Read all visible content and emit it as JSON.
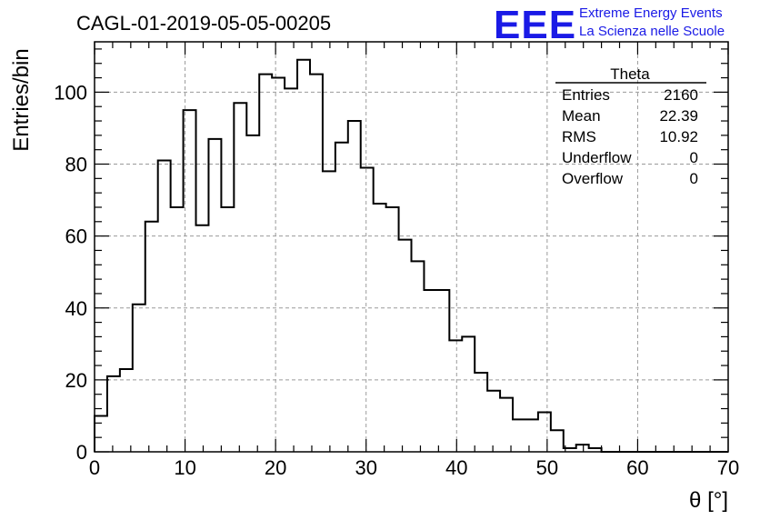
{
  "chart_data": {
    "type": "bar",
    "style": "histogram-step",
    "title": "CAGL-01-2019-05-05-00205",
    "xlabel": "θ [°]",
    "ylabel": "Entries/bin",
    "xlim": [
      0,
      70
    ],
    "ylim": [
      0,
      114
    ],
    "grid": true,
    "xticks": [
      0,
      10,
      20,
      30,
      40,
      50,
      60,
      70
    ],
    "yticks": [
      0,
      20,
      40,
      60,
      80,
      100
    ],
    "bin_width": 1.4,
    "bin_edges_start": 0,
    "values": [
      10,
      21,
      23,
      41,
      64,
      81,
      68,
      95,
      63,
      87,
      68,
      97,
      88,
      105,
      104,
      101,
      109,
      105,
      78,
      86,
      92,
      79,
      69,
      68,
      59,
      53,
      45,
      45,
      31,
      32,
      22,
      17,
      15,
      9,
      9,
      11,
      6,
      1,
      2,
      1,
      0,
      0,
      0,
      0,
      0,
      0,
      0,
      0,
      0,
      0
    ],
    "stats_box": {
      "name": "Theta",
      "entries": [
        {
          "label": "Entries",
          "value": "2160"
        },
        {
          "label": "Mean",
          "value": "22.39"
        },
        {
          "label": "RMS",
          "value": "10.92"
        },
        {
          "label": "Underflow",
          "value": "0"
        },
        {
          "label": "Overflow",
          "value": "0"
        }
      ]
    }
  },
  "logo": {
    "mark": "EEE",
    "line1": "Extreme Energy Events",
    "line2": "La Scienza nelle Scuole"
  },
  "colors": {
    "line": "#000000",
    "logo": "#1a1ae6",
    "grid": "#9a9a9a"
  }
}
